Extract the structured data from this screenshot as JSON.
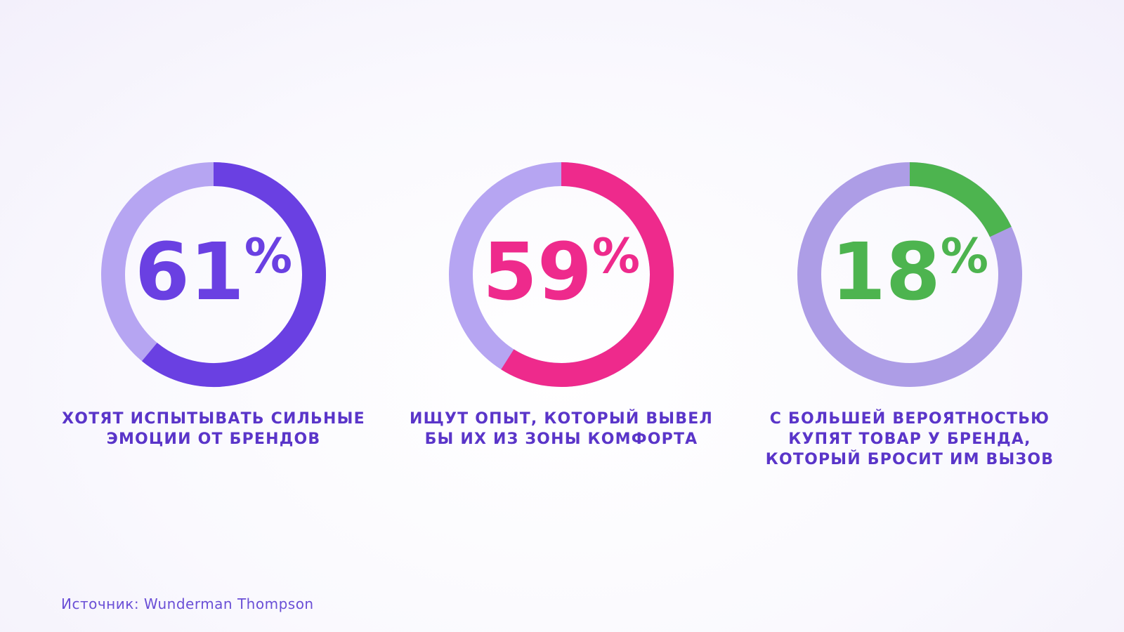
{
  "chart_data": [
    {
      "type": "donut",
      "values": [
        61
      ],
      "value_labels": [
        "61%"
      ],
      "ylim": [
        0,
        100
      ],
      "color": "#6a40e2",
      "track_color": "#b6a5f2",
      "caption": [
        "ХОТЯТ ИСПЫТЫВАТЬ СИЛЬНЫЕ",
        "ЭМОЦИИ ОТ БРЕНДОВ"
      ]
    },
    {
      "type": "donut",
      "values": [
        59
      ],
      "value_labels": [
        "59%"
      ],
      "ylim": [
        0,
        100
      ],
      "color": "#ee2a8c",
      "track_color": "#b6a5f2",
      "caption": [
        "ИЩУТ ОПЫТ, КОТОРЫЙ ВЫВЕЛ",
        "БЫ ИХ ИЗ ЗОНЫ КОМФОРТА"
      ]
    },
    {
      "type": "donut",
      "values": [
        18
      ],
      "value_labels": [
        "18%"
      ],
      "ylim": [
        0,
        100
      ],
      "color": "#4db44f",
      "track_color": "#ad9de6",
      "caption": [
        "С БОЛЬШЕЙ ВЕРОЯТНОСТЬЮ",
        "КУПЯТ ТОВАР У БРЕНДА,",
        "КОТОРЫЙ БРОСИТ ИМ ВЫЗОВ"
      ]
    }
  ],
  "source": "Источник: Wunderman Thompson"
}
